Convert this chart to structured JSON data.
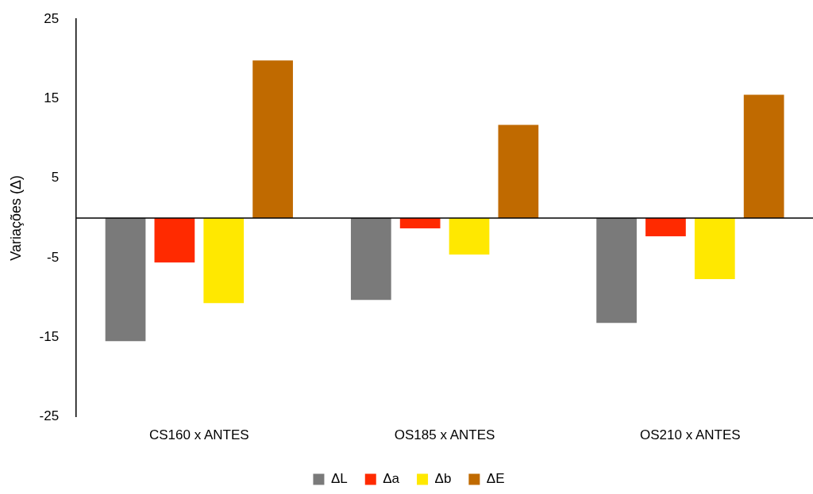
{
  "chart_data": {
    "type": "bar",
    "ylabel": "Variações (Δ)",
    "categories": [
      "CS160 x ANTES",
      "OS185 x ANTES",
      "OS210 x ANTES"
    ],
    "series": [
      {
        "name": "ΔL",
        "color": "#7a7a7a",
        "values": [
          -15.5,
          -10.3,
          -13.2
        ]
      },
      {
        "name": "Δa",
        "color": "#ff2a00",
        "values": [
          -5.6,
          -1.3,
          -2.3
        ]
      },
      {
        "name": "Δb",
        "color": "#ffe800",
        "values": [
          -10.7,
          -4.6,
          -7.7
        ]
      },
      {
        "name": "ΔE",
        "color": "#c06a00",
        "values": [
          19.8,
          11.7,
          15.5
        ]
      }
    ],
    "ylim": [
      -25,
      25
    ],
    "yticks": [
      -25,
      -15,
      -5,
      5,
      15,
      25
    ],
    "grid": false,
    "legend": "bottom"
  }
}
